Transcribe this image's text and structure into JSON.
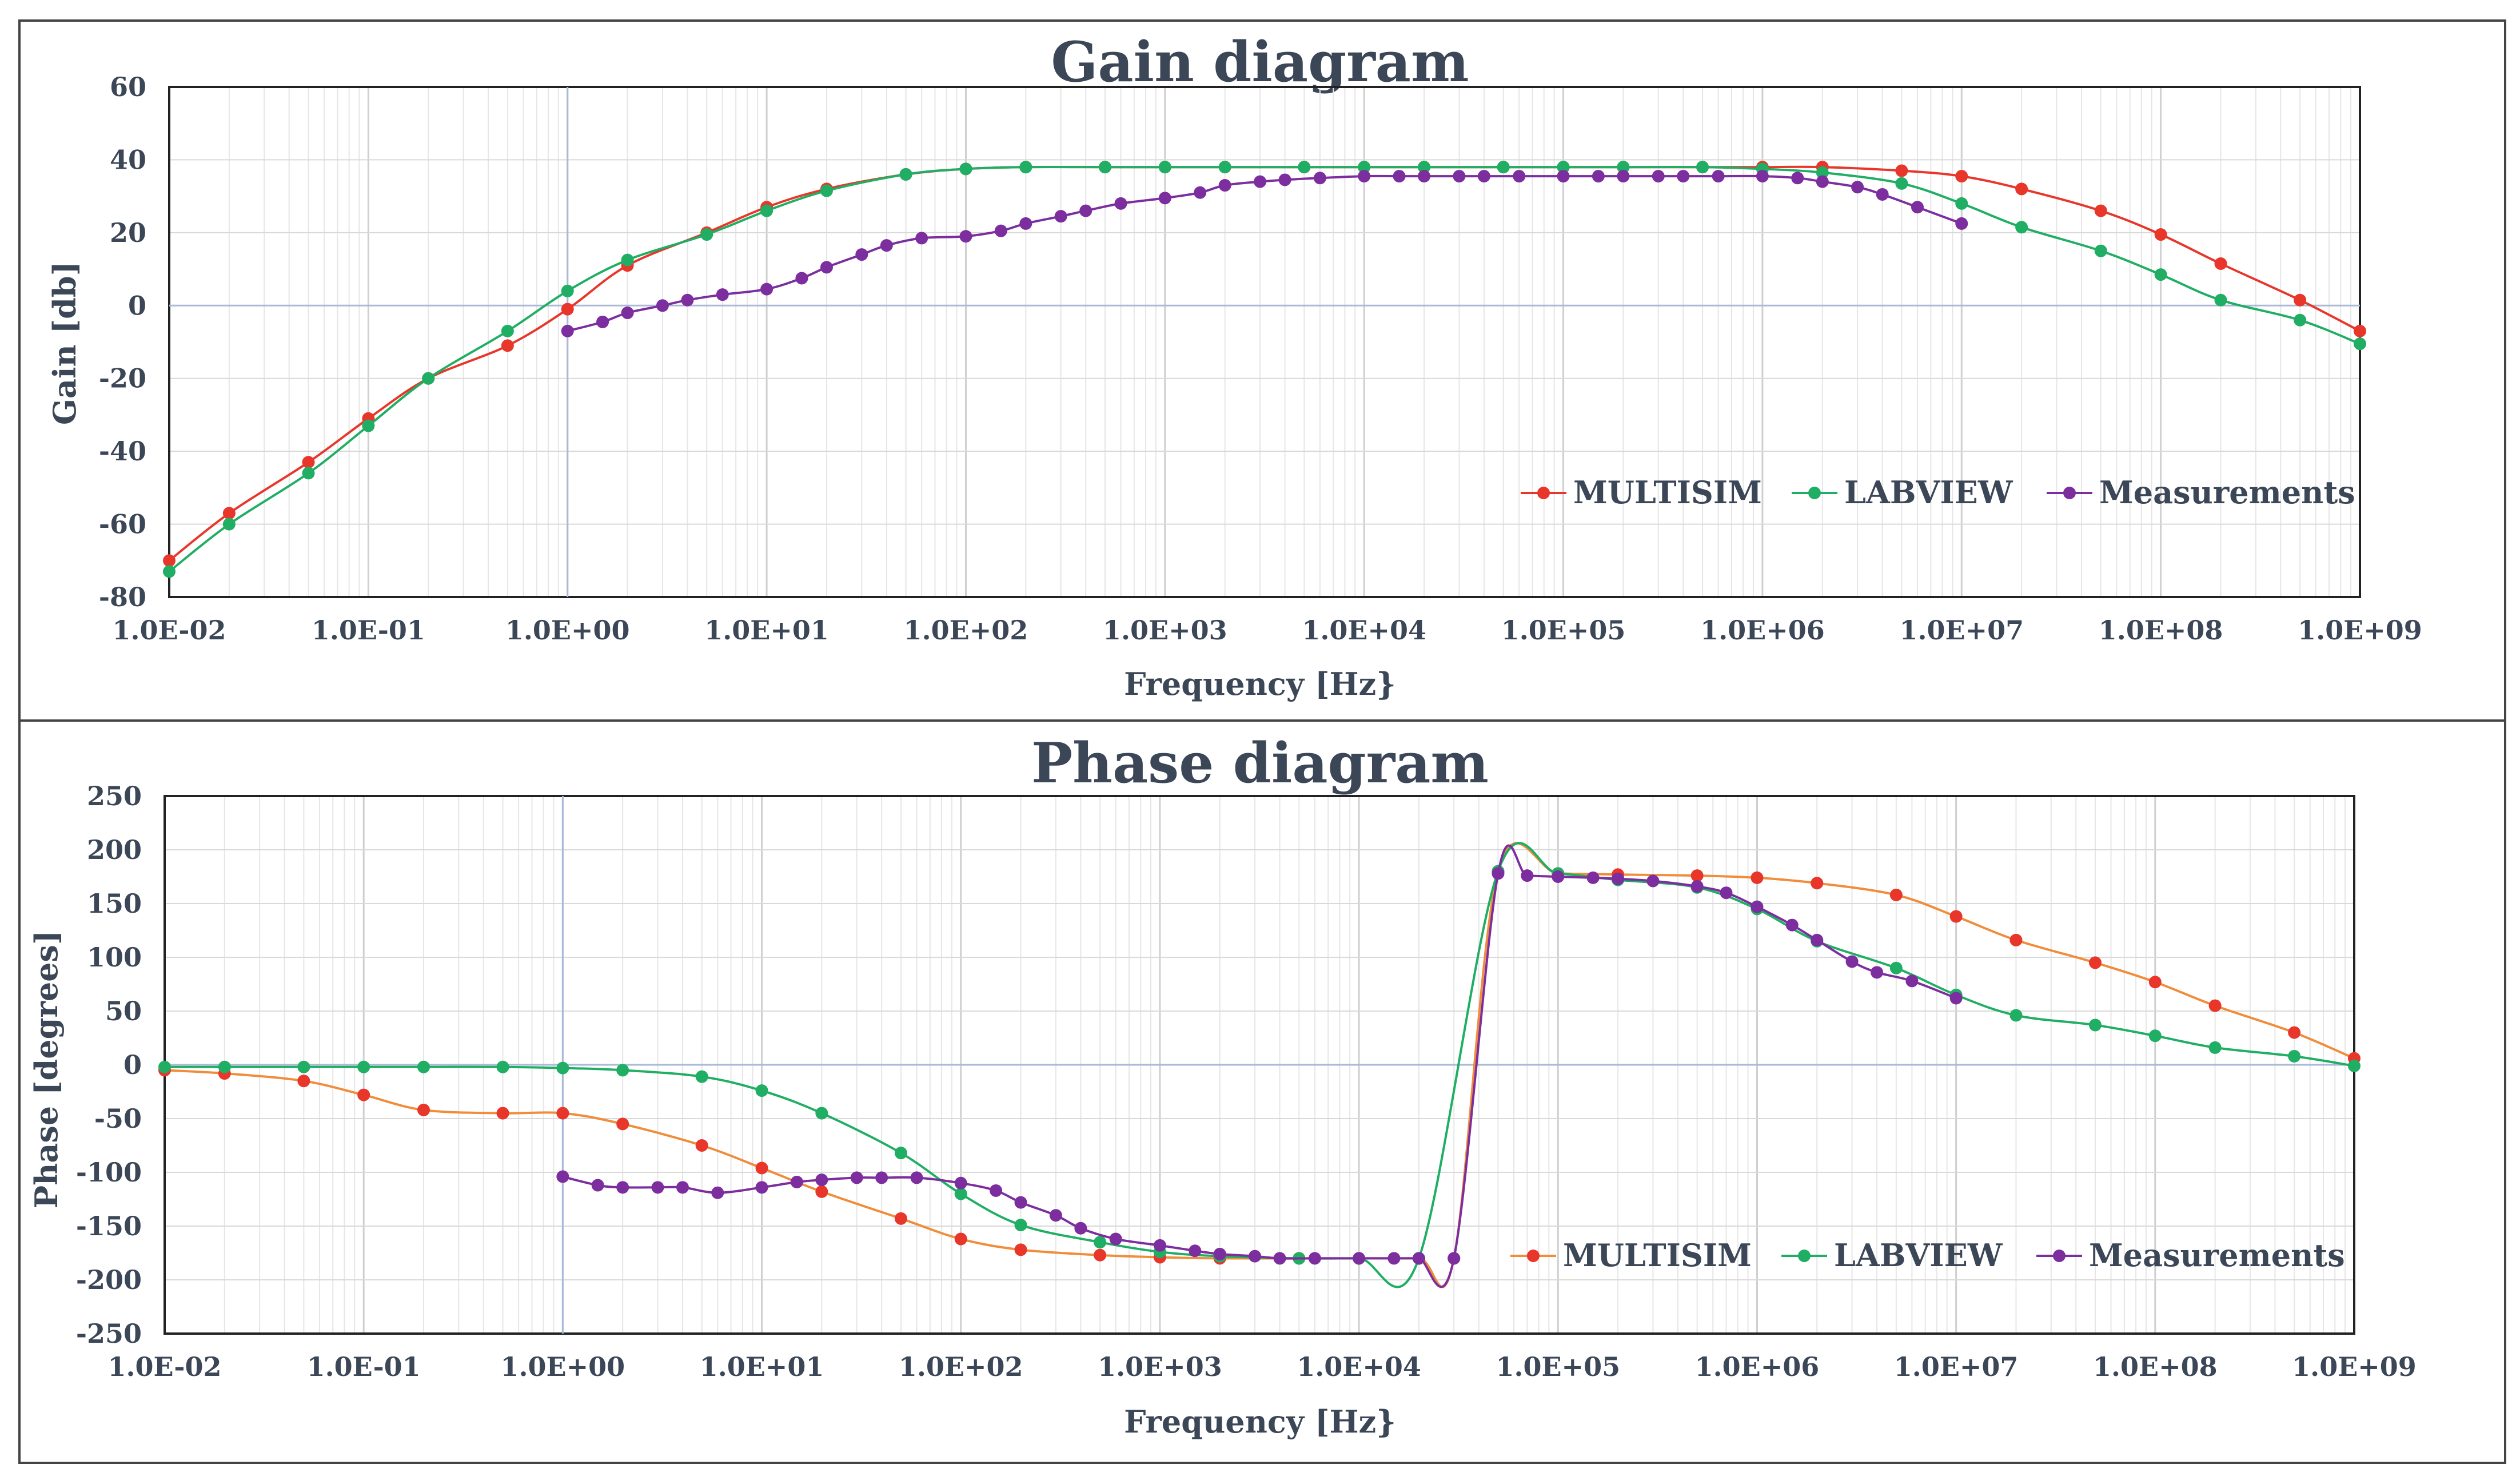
{
  "chart_data": [
    {
      "type": "line",
      "title": "Gain diagram",
      "xlabel": "Frequency [Hz}",
      "ylabel": "Gain [db]",
      "xscale": "log",
      "xlim": [
        0.01,
        1000000000
      ],
      "ylim": [
        -80,
        60
      ],
      "xticks": [
        "1.0E-02",
        "1.0E-01",
        "1.0E+00",
        "1.0E+01",
        "1.0E+02",
        "1.0E+03",
        "1.0E+04",
        "1.0E+05",
        "1.0E+06",
        "1.0E+07",
        "1.0E+08",
        "1.0E+09"
      ],
      "yticks": [
        "60",
        "40",
        "20",
        "0",
        "-20",
        "-40",
        "-60",
        "-80"
      ],
      "grid": true,
      "legend_position": "bottom-right",
      "series": [
        {
          "name": "MULTISIM",
          "color": "#e8362a",
          "x": [
            0.01,
            0.02,
            0.05,
            0.1,
            0.2,
            0.5,
            1,
            2,
            5,
            10,
            20,
            50,
            100,
            200,
            500,
            1000,
            2000,
            5000,
            10000,
            20000,
            50000,
            100000,
            200000,
            500000,
            1000000,
            2000000,
            5000000,
            10000000,
            20000000,
            50000000,
            100000000,
            200000000,
            500000000,
            1000000000
          ],
          "y": [
            -70,
            -57,
            -43,
            -31,
            -20,
            -11,
            -1,
            11,
            20,
            27,
            32,
            36,
            37.5,
            38,
            38,
            38,
            38,
            38,
            38,
            38,
            38,
            38,
            38,
            38,
            38,
            38,
            37,
            35.5,
            32,
            26,
            19.5,
            11.5,
            1.5,
            -7
          ]
        },
        {
          "name": "LABVIEW",
          "color": "#1fae63",
          "x": [
            0.01,
            0.02,
            0.05,
            0.1,
            0.2,
            0.5,
            1,
            2,
            5,
            10,
            20,
            50,
            100,
            200,
            500,
            1000,
            2000,
            5000,
            10000,
            20000,
            50000,
            100000,
            200000,
            500000,
            1000000,
            2000000,
            5000000,
            10000000,
            20000000,
            50000000,
            100000000,
            200000000,
            500000000,
            1000000000
          ],
          "y": [
            -73,
            -60,
            -46,
            -33,
            -20,
            -7,
            4,
            12.5,
            19.5,
            26,
            31.5,
            36,
            37.5,
            38,
            38,
            38,
            38,
            38,
            38,
            38,
            38,
            38,
            38,
            38,
            37.5,
            36.5,
            33.5,
            28,
            21.5,
            15,
            8.5,
            1.5,
            -4,
            -10.5
          ]
        },
        {
          "name": "Measurements",
          "color": "#7c2d9e",
          "x": [
            1,
            1.5,
            2,
            3,
            4,
            6,
            10,
            15,
            20,
            30,
            40,
            60,
            100,
            150,
            200,
            300,
            400,
            600,
            1000,
            1500,
            2000,
            3000,
            4000,
            6000,
            10000,
            15000,
            20000,
            30000,
            40000,
            60000,
            100000,
            150000,
            200000,
            300000,
            400000,
            600000,
            1000000,
            1500000,
            2000000,
            3000000,
            4000000,
            6000000,
            10000000
          ],
          "y": [
            -7,
            -4.5,
            -2,
            0,
            1.5,
            3,
            4.5,
            7.5,
            10.5,
            14,
            16.5,
            18.5,
            19,
            20.5,
            22.5,
            24.5,
            26,
            28,
            29.5,
            31,
            33,
            34,
            34.5,
            35,
            35.5,
            35.5,
            35.5,
            35.5,
            35.5,
            35.5,
            35.5,
            35.5,
            35.5,
            35.5,
            35.5,
            35.5,
            35.5,
            35,
            34,
            32.5,
            30.5,
            27,
            22.5
          ]
        }
      ]
    },
    {
      "type": "line",
      "title": "Phase diagram",
      "xlabel": "Frequency [Hz}",
      "ylabel": "Phase [degrees]",
      "xscale": "log",
      "xlim": [
        0.01,
        1000000000
      ],
      "ylim": [
        -250,
        250
      ],
      "xticks": [
        "1.0E-02",
        "1.0E-01",
        "1.0E+00",
        "1.0E+01",
        "1.0E+02",
        "1.0E+03",
        "1.0E+04",
        "1.0E+05",
        "1.0E+06",
        "1.0E+07",
        "1.0E+08",
        "1.0E+09"
      ],
      "yticks": [
        "250",
        "200",
        "150",
        "100",
        "50",
        "0",
        "-50",
        "-100",
        "-150",
        "-200",
        "-250"
      ],
      "grid": true,
      "legend_position": "bottom-right",
      "series": [
        {
          "name": "MULTISIM",
          "color": "#f08c3a",
          "marker_color": "#e8362a",
          "x": [
            0.01,
            0.02,
            0.05,
            0.1,
            0.2,
            0.5,
            1,
            2,
            5,
            10,
            20,
            50,
            100,
            200,
            500,
            1000,
            2000,
            5000,
            10000,
            20000,
            30000,
            50000,
            100000,
            200000,
            500000,
            1000000,
            2000000,
            5000000,
            10000000,
            20000000,
            50000000,
            100000000,
            200000000,
            500000000,
            1000000000
          ],
          "y": [
            -5,
            -8,
            -15,
            -28,
            -42,
            -45,
            -45,
            -55,
            -75,
            -96,
            -118,
            -143,
            -162,
            -172,
            -177,
            -179,
            -180,
            -180,
            -180,
            -180,
            -180,
            180,
            178,
            177,
            176,
            174,
            169,
            158,
            138,
            116,
            95,
            77,
            55,
            30,
            6
          ]
        },
        {
          "name": "LABVIEW",
          "color": "#1fae63",
          "x": [
            0.01,
            0.02,
            0.05,
            0.1,
            0.2,
            0.5,
            1,
            2,
            5,
            10,
            20,
            50,
            100,
            200,
            500,
            1000,
            2000,
            5000,
            10000,
            20000,
            50000,
            100000,
            200000,
            500000,
            1000000,
            2000000,
            5000000,
            10000000,
            20000000,
            50000000,
            100000000,
            200000000,
            500000000,
            1000000000
          ],
          "y": [
            -2,
            -2,
            -2,
            -2,
            -2,
            -2,
            -3,
            -5,
            -11,
            -24,
            -45,
            -82,
            -120,
            -149,
            -165,
            -174,
            -178,
            -180,
            -180,
            -180,
            180,
            178,
            172,
            165,
            145,
            115,
            90,
            65,
            46,
            37,
            27,
            16,
            8,
            -1
          ]
        },
        {
          "name": "Measurements",
          "color": "#7c2d9e",
          "x": [
            1,
            1.5,
            2,
            3,
            4,
            6,
            10,
            15,
            20,
            30,
            40,
            60,
            100,
            150,
            200,
            300,
            400,
            600,
            1000,
            1500,
            2000,
            3000,
            4000,
            6000,
            10000,
            15000,
            20000,
            30000,
            50000,
            70000,
            100000,
            150000,
            200000,
            300000,
            500000,
            700000,
            1000000,
            1500000,
            2000000,
            3000000,
            4000000,
            6000000,
            10000000
          ],
          "y": [
            -104,
            -112,
            -114,
            -114,
            -114,
            -119,
            -114,
            -109,
            -107,
            -105,
            -105,
            -105,
            -110,
            -117,
            -128,
            -140,
            -152,
            -162,
            -168,
            -173,
            -176,
            -178,
            -180,
            -180,
            -180,
            -180,
            -180,
            -180,
            178,
            176,
            175,
            174,
            173,
            171,
            166,
            160,
            147,
            130,
            116,
            96,
            86,
            78,
            62
          ]
        }
      ]
    }
  ]
}
